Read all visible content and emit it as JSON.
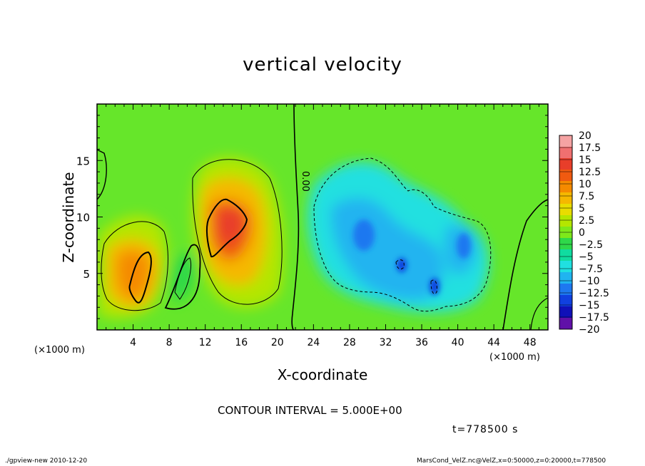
{
  "chart_data": {
    "type": "heatmap",
    "title": "vertical velocity",
    "xlabel": "X-coordinate",
    "ylabel": "Z-coordinate",
    "x_unit_label": "(×1000 m)",
    "z_unit_label": "(×1000 m)",
    "xlim": [
      0,
      50
    ],
    "ylim": [
      0,
      20
    ],
    "x_ticks": [
      4,
      8,
      12,
      16,
      20,
      24,
      28,
      32,
      36,
      40,
      44,
      48
    ],
    "y_ticks": [
      5,
      10,
      15
    ],
    "colorbar": {
      "labels": [
        "20",
        "17.5",
        "15",
        "12.5",
        "10",
        "7.5",
        "5",
        "2.5",
        "0",
        "−2.5",
        "−5",
        "−7.5",
        "−10",
        "−12.5",
        "−15",
        "−17.5",
        "−20"
      ],
      "colors": [
        "#f5a3a3",
        "#f07070",
        "#e83e2a",
        "#f05a10",
        "#f58a00",
        "#f5b800",
        "#e8dc00",
        "#b4e600",
        "#7ee81a",
        "#2fd84a",
        "#10dca0",
        "#20e0e0",
        "#20b4f0",
        "#1e78f0",
        "#1040e0",
        "#1010b8",
        "#6010a8"
      ]
    },
    "contour_label": "0.00",
    "features": [
      {
        "kind": "updraft",
        "x_center": 5,
        "z_center": 6,
        "peak": 12.5
      },
      {
        "kind": "updraft",
        "x_center": 14,
        "z_center": 9.5,
        "peak": 15
      },
      {
        "kind": "downdraft",
        "x_center": 33,
        "z_center": 6,
        "peak": -10
      },
      {
        "kind": "downdraft",
        "x_center": 37.5,
        "z_center": 4,
        "peak": -10
      }
    ]
  },
  "contour_interval": "CONTOUR INTERVAL = 5.000E+00",
  "time_label": "t=778500 s",
  "footer_left": "./gpview-new  2010-12-20",
  "footer_right": "MarsCond_VelZ.nc@VelZ,x=0:50000,z=0:20000,t=778500"
}
